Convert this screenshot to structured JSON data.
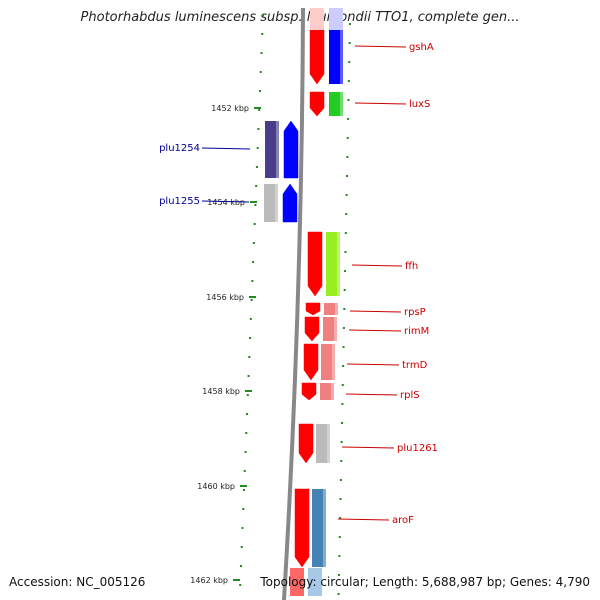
{
  "title": "Photorhabdus luminescens subsp. laumondii TTO1, complete gen...",
  "footer": {
    "accession": "Accession: NC_005126",
    "topology": "Topology: circular; Length: 5,688,987 bp; Genes: 4,790"
  },
  "axis": {
    "tick_labels": [
      "1452 kbp",
      "1454 kbp",
      "1456 kbp",
      "1458 kbp",
      "1460 kbp",
      "1462 kbp"
    ]
  },
  "genes": [
    {
      "name": "gshA",
      "color": "#ff0000",
      "pair_color": "#0000ff"
    },
    {
      "name": "luxS",
      "color": "#ff0000",
      "pair_color": "#22cc22"
    },
    {
      "name": "plu1254",
      "color": "#483d8b",
      "pair_color": "#0000ff"
    },
    {
      "name": "plu1255",
      "color": "#bbbbbb",
      "pair_color": "#0000ff"
    },
    {
      "name": "ffh",
      "color": "#ff0000",
      "pair_color": "#99ee22"
    },
    {
      "name": "rpsP",
      "color": "#ff0000",
      "pair_color": "#f08080"
    },
    {
      "name": "rimM",
      "color": "#ff0000",
      "pair_color": "#f08080"
    },
    {
      "name": "trmD",
      "color": "#ff0000",
      "pair_color": "#f08080"
    },
    {
      "name": "rplS",
      "color": "#ff0000",
      "pair_color": "#f08080"
    },
    {
      "name": "plu1261",
      "color": "#ff0000",
      "pair_color": "#bbbbbb"
    },
    {
      "name": "aroF",
      "color": "#ff0000",
      "pair_color": "#4682b4"
    }
  ],
  "colors": {
    "backbone": "#888888",
    "ticks": "#228b22",
    "label_red": "#cc0000",
    "label_blue": "#000099"
  }
}
